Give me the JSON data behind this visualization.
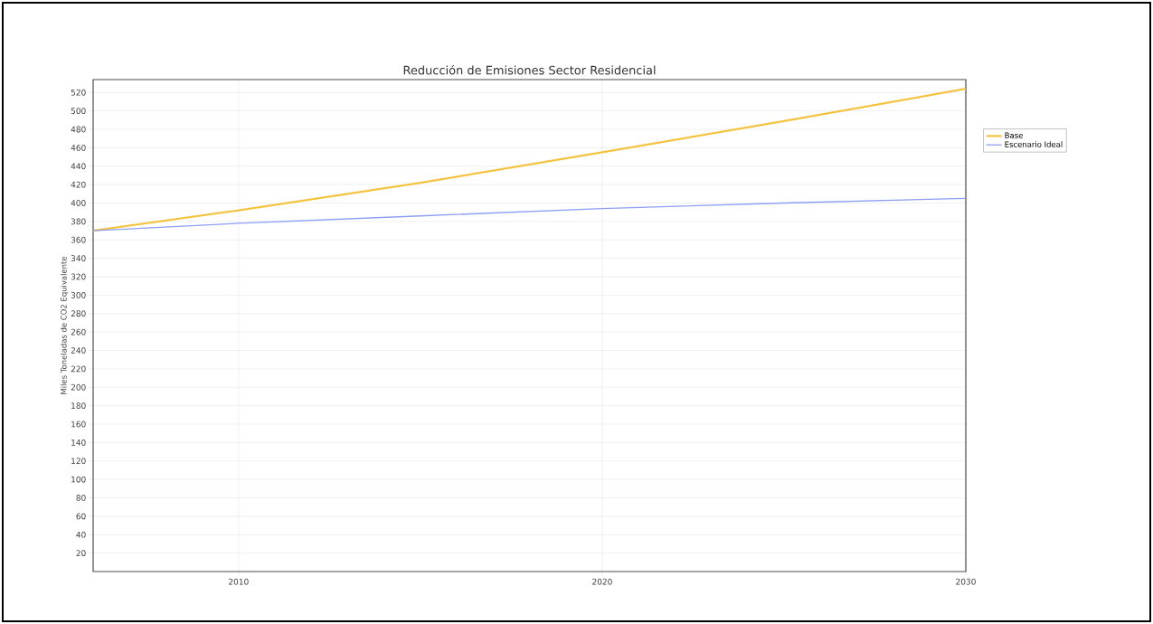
{
  "chart_data": {
    "type": "line",
    "title": "Reducción de Emisiones Sector Residencial",
    "ylabel": "Miles Toneladas de CO2 Equivalente",
    "x": [
      2006,
      2010,
      2015,
      2020,
      2025,
      2030
    ],
    "series": [
      {
        "name": "Base",
        "color": "#f5c342",
        "values": [
          370,
          392,
          422,
          455,
          489,
          524
        ]
      },
      {
        "name": "Escenario Ideal",
        "color": "#8c9ef5",
        "values": [
          370,
          378,
          386,
          394,
          400,
          405
        ]
      }
    ],
    "xlim": [
      2006,
      2030
    ],
    "xticks": [
      2010,
      2020,
      2030
    ],
    "ylim": [
      0,
      534
    ],
    "yticks": [
      20,
      40,
      60,
      80,
      100,
      120,
      140,
      160,
      180,
      200,
      220,
      240,
      260,
      280,
      300,
      320,
      340,
      360,
      380,
      400,
      420,
      440,
      460,
      480,
      500,
      520
    ],
    "grid": true,
    "legend": "right",
    "marker": "none",
    "line_style": "solid"
  }
}
